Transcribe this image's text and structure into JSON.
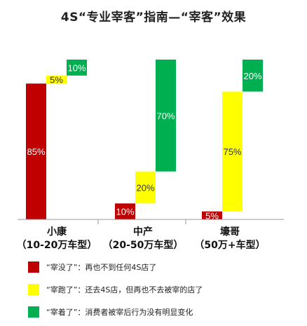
{
  "title": "4S“专业宰客”指南—“宰客”效果",
  "chart_data": {
    "type": "bar",
    "subtype": "waterfall",
    "ylim": [
      0,
      100
    ],
    "categories": [
      {
        "label": "小康",
        "sublabel": "（10-20万车型）"
      },
      {
        "label": "中产",
        "sublabel": "（20-50万车型）"
      },
      {
        "label": "壕哥",
        "sublabel": "（50万+车型）"
      }
    ],
    "series": [
      {
        "name": "“宰没了”：再也不到任何4S店了",
        "color": "#c00000",
        "values": [
          85,
          10,
          5
        ],
        "labels": [
          "85%",
          "10%",
          "5%"
        ]
      },
      {
        "name": "“宰跑了”：还去4S店，但再也不去被宰的店了",
        "color": "#ffff00",
        "values": [
          5,
          20,
          75
        ],
        "labels": [
          "5%",
          "20%",
          "75%"
        ]
      },
      {
        "name": "“宰着了”：消费者被宰后行为没有明显变化",
        "color": "#00b050",
        "values": [
          10,
          70,
          20
        ],
        "labels": [
          "10%",
          "70%",
          "20%"
        ]
      }
    ]
  }
}
